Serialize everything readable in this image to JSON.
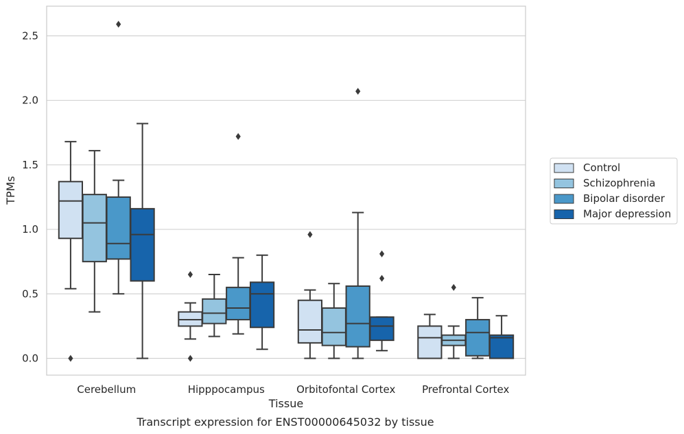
{
  "chart_data": {
    "type": "box",
    "xlabel": "Tissue",
    "ylabel": "TPMs",
    "caption": "Transcript expression for ENST00000645032 by tissue",
    "ylim": [
      -0.13,
      2.73
    ],
    "yticks": [
      "0.0",
      "0.5",
      "1.0",
      "1.5",
      "2.0",
      "2.5"
    ],
    "ytick_values": [
      0.0,
      0.5,
      1.0,
      1.5,
      2.0,
      2.5
    ],
    "grid": "horizontal",
    "legend_position": "right",
    "categories": [
      "Cerebellum",
      "Hipppocampus",
      "Orbitofontal Cortex",
      "Prefrontal Cortex"
    ],
    "series": [
      {
        "name": "Control",
        "color": "#d0e1f2",
        "boxes": [
          {
            "whislo": 0.54,
            "q1": 0.93,
            "med": 1.22,
            "q3": 1.37,
            "whishi": 1.68,
            "fliers": [
              0.0
            ]
          },
          {
            "whislo": 0.15,
            "q1": 0.25,
            "med": 0.3,
            "q3": 0.36,
            "whishi": 0.43,
            "fliers": [
              0.65,
              0.0
            ]
          },
          {
            "whislo": 0.0,
            "q1": 0.12,
            "med": 0.22,
            "q3": 0.45,
            "whishi": 0.53,
            "fliers": [
              0.96
            ]
          },
          {
            "whislo": 0.0,
            "q1": 0.0,
            "med": 0.16,
            "q3": 0.25,
            "whishi": 0.34,
            "fliers": []
          }
        ]
      },
      {
        "name": "Schizophrenia",
        "color": "#94c4df",
        "boxes": [
          {
            "whislo": 0.36,
            "q1": 0.75,
            "med": 1.05,
            "q3": 1.27,
            "whishi": 1.61,
            "fliers": []
          },
          {
            "whislo": 0.17,
            "q1": 0.27,
            "med": 0.35,
            "q3": 0.46,
            "whishi": 0.65,
            "fliers": []
          },
          {
            "whislo": 0.0,
            "q1": 0.1,
            "med": 0.2,
            "q3": 0.39,
            "whishi": 0.58,
            "fliers": []
          },
          {
            "whislo": 0.0,
            "q1": 0.1,
            "med": 0.14,
            "q3": 0.18,
            "whishi": 0.25,
            "fliers": [
              0.55
            ]
          }
        ]
      },
      {
        "name": "Bipolar disorder",
        "color": "#4a98c9",
        "boxes": [
          {
            "whislo": 0.5,
            "q1": 0.77,
            "med": 0.89,
            "q3": 1.25,
            "whishi": 1.38,
            "fliers": [
              2.59
            ]
          },
          {
            "whislo": 0.19,
            "q1": 0.3,
            "med": 0.39,
            "q3": 0.55,
            "whishi": 0.78,
            "fliers": [
              1.72
            ]
          },
          {
            "whislo": 0.0,
            "q1": 0.09,
            "med": 0.27,
            "q3": 0.56,
            "whishi": 1.13,
            "fliers": [
              2.07
            ]
          },
          {
            "whislo": 0.0,
            "q1": 0.02,
            "med": 0.2,
            "q3": 0.3,
            "whishi": 0.47,
            "fliers": []
          }
        ]
      },
      {
        "name": "Major depression",
        "color": "#1764ab",
        "boxes": [
          {
            "whislo": 0.0,
            "q1": 0.6,
            "med": 0.96,
            "q3": 1.16,
            "whishi": 1.82,
            "fliers": []
          },
          {
            "whislo": 0.07,
            "q1": 0.24,
            "med": 0.5,
            "q3": 0.59,
            "whishi": 0.8,
            "fliers": []
          },
          {
            "whislo": 0.06,
            "q1": 0.14,
            "med": 0.25,
            "q3": 0.32,
            "whishi": 0.32,
            "fliers": [
              0.81,
              0.62
            ]
          },
          {
            "whislo": 0.0,
            "q1": 0.0,
            "med": 0.16,
            "q3": 0.18,
            "whishi": 0.33,
            "fliers": []
          }
        ]
      }
    ]
  }
}
